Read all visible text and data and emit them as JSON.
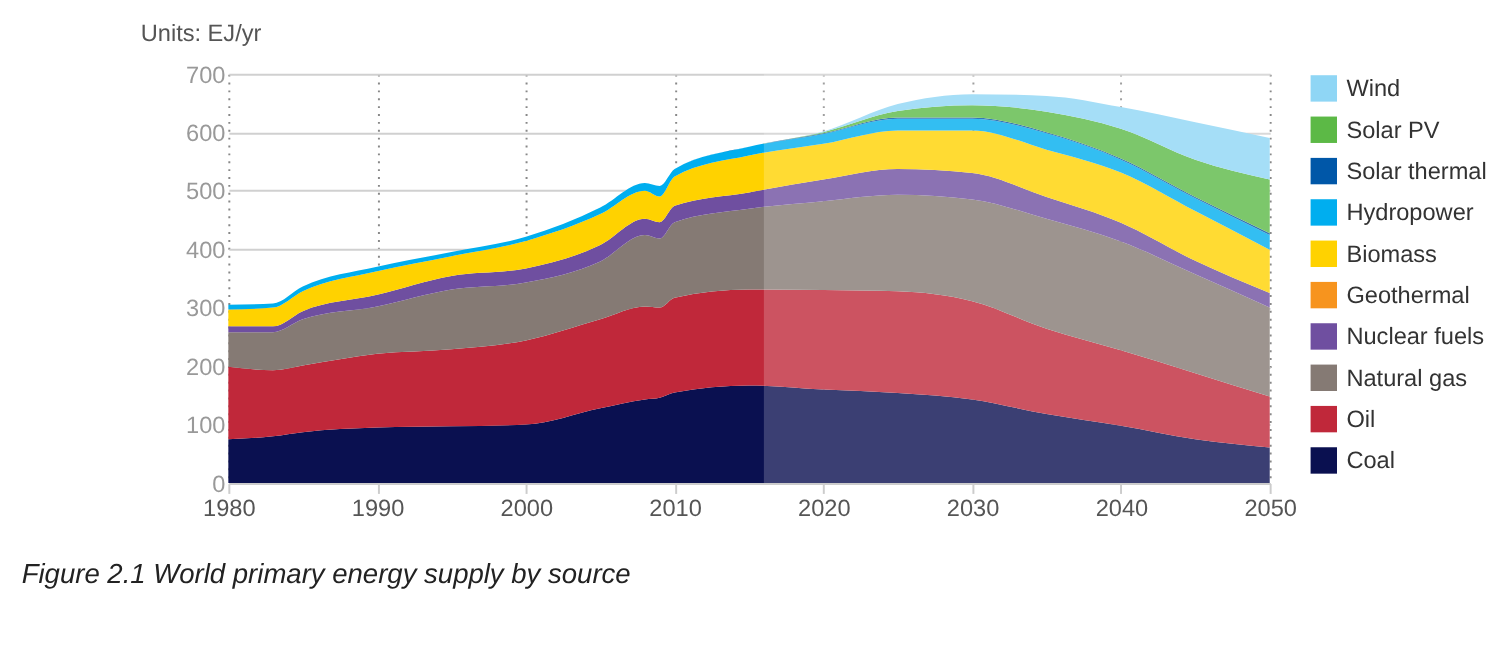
{
  "chart_data": {
    "type": "area",
    "stacked": true,
    "ylabel": "Units: EJ/yr",
    "x": [
      1980,
      1983,
      1985,
      1990,
      1995,
      2000,
      2005,
      2008,
      2009,
      2010,
      2015,
      2020,
      2025,
      2030,
      2035,
      2040,
      2045,
      2050
    ],
    "series": [
      {
        "name": "Coal",
        "color": "#0a1050",
        "values": [
          75,
          80,
          87,
          95,
          97,
          100,
          128,
          143,
          146,
          155,
          167,
          160,
          154,
          143,
          118,
          98,
          75,
          61
        ]
      },
      {
        "name": "Oil",
        "color": "#c0283a",
        "values": [
          124,
          113,
          114,
          126,
          132,
          144,
          152,
          159,
          154,
          162,
          164,
          170,
          174,
          168,
          146,
          129,
          113,
          87
        ]
      },
      {
        "name": "Natural gas",
        "color": "#857a74",
        "values": [
          59,
          65,
          79,
          81,
          102,
          99,
          99,
          122,
          118,
          129,
          138,
          152,
          165,
          174,
          188,
          186,
          169,
          152
        ]
      },
      {
        "name": "Nuclear fuels",
        "color": "#6f4fa0",
        "values": [
          10,
          10,
          14,
          20,
          23,
          24,
          28,
          28,
          28,
          28,
          28,
          37,
          44,
          45,
          37,
          32,
          23,
          25
        ]
      },
      {
        "name": "Geothermal",
        "color": "#f7941e",
        "values": [
          null,
          null,
          null,
          null,
          null,
          null,
          null,
          null,
          null,
          null,
          null,
          null,
          null,
          null,
          null,
          null,
          null,
          null
        ]
      },
      {
        "name": "Biomass",
        "color": "#ffd200",
        "values": [
          29,
          32,
          34,
          40,
          34,
          47,
          53,
          48,
          44,
          50,
          63,
          61,
          66,
          73,
          81,
          86,
          85,
          74
        ]
      },
      {
        "name": "Hydropower",
        "color": "#00aeef",
        "values": [
          8,
          7,
          8,
          8,
          7,
          7,
          11,
          13,
          18,
          13,
          15,
          17,
          20,
          20,
          28,
          22,
          22,
          25
        ]
      },
      {
        "name": "Solar thermal",
        "color": "#0057a8",
        "values": [
          0,
          0,
          0,
          0,
          0,
          0,
          0,
          0,
          0,
          0,
          0,
          1,
          2,
          2,
          2,
          2,
          2,
          3
        ]
      },
      {
        "name": "Solar PV",
        "color": "#5cb946",
        "values": [
          0,
          0,
          0,
          0,
          0,
          0,
          0,
          0,
          0,
          0,
          0,
          2,
          11,
          21,
          35,
          51,
          64,
          92
        ]
      },
      {
        "name": "Wind",
        "color": "#8fd6f5",
        "values": [
          0,
          0,
          0,
          0,
          0,
          0,
          0,
          0,
          0,
          0,
          0,
          1,
          12,
          19,
          27,
          37,
          64,
          71
        ]
      }
    ],
    "xlim": [
      1980,
      2050
    ],
    "xticks": [
      1980,
      1990,
      2000,
      2010,
      2020,
      2030,
      2040,
      2050
    ],
    "ylim": [
      0,
      700
    ],
    "yticks": [
      0,
      100,
      200,
      300,
      400,
      500,
      600,
      700
    ],
    "bands": [
      {
        "axis": "x",
        "from": 2016,
        "to": 2050,
        "color": "#ffffff"
      }
    ],
    "grid": true,
    "legend": "right",
    "annotations": [
      "Figure 2.1 World primary energy supply by source"
    ]
  }
}
